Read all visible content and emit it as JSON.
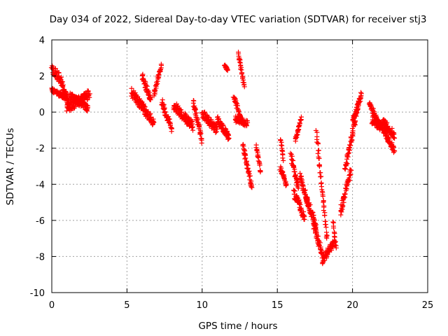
{
  "chart_data": {
    "type": "scatter",
    "title": "Day 034 of 2022, Sidereal Day-to-day VTEC variation (SDTVAR) for receiver stj3",
    "xlabel": "GPS time / hours",
    "ylabel": "SDTVAR / TECUs",
    "xlim": [
      0,
      25
    ],
    "ylim": [
      -10,
      4
    ],
    "xticks": [
      0,
      5,
      10,
      15,
      20,
      25
    ],
    "yticks": [
      -10,
      -8,
      -6,
      -4,
      -2,
      0,
      2,
      4
    ],
    "grid": true,
    "marker": "+",
    "marker_color": "#ff0000",
    "segments": [
      {
        "x": [
          0.0,
          0.6
        ],
        "y": [
          2.4,
          1.8
        ],
        "spread": 0.5
      },
      {
        "x": [
          0.0,
          1.0
        ],
        "y": [
          1.2,
          0.8
        ],
        "spread": 0.3
      },
      {
        "x": [
          0.6,
          1.2
        ],
        "y": [
          1.8,
          0.3
        ],
        "spread": 0.4
      },
      {
        "x": [
          1.0,
          2.5
        ],
        "y": [
          0.2,
          1.0
        ],
        "spread": 0.5
      },
      {
        "x": [
          1.2,
          2.4
        ],
        "y": [
          0.9,
          0.2
        ],
        "spread": 0.4
      },
      {
        "x": [
          5.3,
          6.8
        ],
        "y": [
          1.1,
          -0.6
        ],
        "spread": 0.5
      },
      {
        "x": [
          6.0,
          6.6
        ],
        "y": [
          2.0,
          0.6
        ],
        "spread": 0.4
      },
      {
        "x": [
          6.8,
          7.3
        ],
        "y": [
          1.0,
          2.6
        ],
        "spread": 0.3
      },
      {
        "x": [
          7.3,
          8.0
        ],
        "y": [
          0.6,
          -1.0
        ],
        "spread": 0.4
      },
      {
        "x": [
          8.1,
          9.4
        ],
        "y": [
          0.4,
          -0.8
        ],
        "spread": 0.5
      },
      {
        "x": [
          9.4,
          10.0
        ],
        "y": [
          0.6,
          -1.6
        ],
        "spread": 0.4
      },
      {
        "x": [
          10.0,
          11.0
        ],
        "y": [
          -0.1,
          -1.0
        ],
        "spread": 0.5
      },
      {
        "x": [
          11.0,
          11.8
        ],
        "y": [
          -0.4,
          -1.4
        ],
        "spread": 0.4
      },
      {
        "x": [
          11.5,
          11.7
        ],
        "y": [
          2.6,
          2.3
        ],
        "spread": 0.15
      },
      {
        "x": [
          12.1,
          12.6
        ],
        "y": [
          0.9,
          -0.4
        ],
        "spread": 0.3
      },
      {
        "x": [
          12.2,
          13.0
        ],
        "y": [
          -0.4,
          -0.6
        ],
        "spread": 0.4
      },
      {
        "x": [
          12.4,
          12.8
        ],
        "y": [
          3.3,
          1.4
        ],
        "spread": 0.2
      },
      {
        "x": [
          12.7,
          13.3
        ],
        "y": [
          -1.8,
          -4.2
        ],
        "spread": 0.4
      },
      {
        "x": [
          13.6,
          13.9
        ],
        "y": [
          -1.9,
          -3.3
        ],
        "spread": 0.3
      },
      {
        "x": [
          15.2,
          15.4
        ],
        "y": [
          -1.5,
          -2.6
        ],
        "spread": 0.2
      },
      {
        "x": [
          15.2,
          15.6
        ],
        "y": [
          -3.1,
          -4.1
        ],
        "spread": 0.3
      },
      {
        "x": [
          15.9,
          16.4
        ],
        "y": [
          -2.4,
          -4.2
        ],
        "spread": 0.4
      },
      {
        "x": [
          16.2,
          16.6
        ],
        "y": [
          -1.6,
          -0.3
        ],
        "spread": 0.2
      },
      {
        "x": [
          16.1,
          16.8
        ],
        "y": [
          -4.5,
          -5.8
        ],
        "spread": 0.5
      },
      {
        "x": [
          16.5,
          17.1
        ],
        "y": [
          -3.5,
          -5.3
        ],
        "spread": 0.4
      },
      {
        "x": [
          16.9,
          17.6
        ],
        "y": [
          -4.6,
          -6.5
        ],
        "spread": 0.5
      },
      {
        "x": [
          17.4,
          18.0
        ],
        "y": [
          -6.2,
          -7.9
        ],
        "spread": 0.4
      },
      {
        "x": [
          17.6,
          18.3
        ],
        "y": [
          -1.2,
          -7.0
        ],
        "spread": 0.4
      },
      {
        "x": [
          18.0,
          18.8
        ],
        "y": [
          -8.2,
          -7.2
        ],
        "spread": 0.4
      },
      {
        "x": [
          18.7,
          18.9
        ],
        "y": [
          -6.1,
          -7.6
        ],
        "spread": 0.2
      },
      {
        "x": [
          19.2,
          19.9
        ],
        "y": [
          -5.5,
          -3.2
        ],
        "spread": 0.4
      },
      {
        "x": [
          19.5,
          20.4
        ],
        "y": [
          -3.2,
          0.5
        ],
        "spread": 0.4
      },
      {
        "x": [
          20.0,
          20.6
        ],
        "y": [
          -0.5,
          1.0
        ],
        "spread": 0.3
      },
      {
        "x": [
          21.1,
          21.8
        ],
        "y": [
          0.5,
          -0.8
        ],
        "spread": 0.4
      },
      {
        "x": [
          21.3,
          22.2
        ],
        "y": [
          -0.4,
          -1.0
        ],
        "spread": 0.5
      },
      {
        "x": [
          22.0,
          22.8
        ],
        "y": [
          -0.5,
          -1.3
        ],
        "spread": 0.4
      },
      {
        "x": [
          22.1,
          22.8
        ],
        "y": [
          -1.0,
          -2.2
        ],
        "spread": 0.4
      }
    ]
  }
}
